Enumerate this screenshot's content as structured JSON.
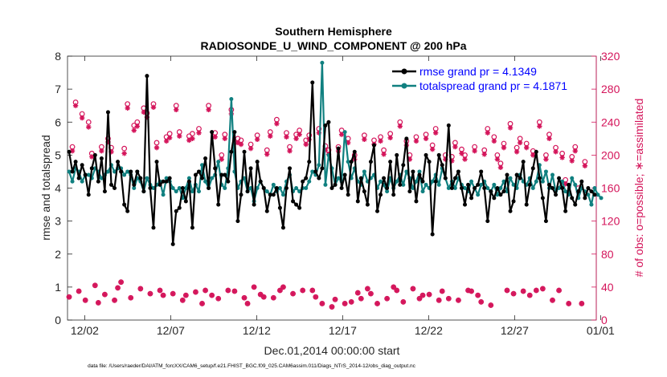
{
  "chart_data": {
    "type": "line",
    "title": "Southern Hemisphere",
    "subtitle": "RADIOSONDE_U_WIND_COMPONENT @ 200 hPa",
    "xlabel": "Dec.01,2014 00:00:00 start",
    "ylabel": "rmse and totalspread",
    "ylabel_right": "# of obs: o=possible; ∗=assimilated",
    "xlim": [
      0,
      30.75
    ],
    "ylim": [
      0,
      8
    ],
    "ylim_right": [
      0,
      320
    ],
    "x_ticks": [
      1,
      6,
      11,
      16,
      21,
      26,
      31
    ],
    "x_tick_labels": [
      "12/02",
      "12/07",
      "12/12",
      "12/17",
      "12/22",
      "12/27",
      "01/01"
    ],
    "y_ticks": [
      "0",
      "1",
      "2",
      "3",
      "4",
      "5",
      "6",
      "7",
      "8"
    ],
    "y_ticks_right": [
      "0",
      "40",
      "80",
      "120",
      "160",
      "200",
      "240",
      "280",
      "320"
    ],
    "legend": [
      {
        "label": "rmse grand pr = 4.1349",
        "color": "#000000"
      },
      {
        "label": "totalspread grand pr = 4.1871",
        "color": "#108080"
      }
    ],
    "series": [
      {
        "name": "rmse",
        "axis": "left",
        "color": "#000000",
        "marker": "dot",
        "values": [
          5.1,
          4.5,
          4.8,
          4.3,
          4.7,
          4.4,
          3.8,
          4.6,
          5.0,
          4.2,
          4.9,
          3.9,
          6.3,
          4.1,
          4.0,
          4.8,
          4.5,
          3.5,
          3.3,
          4.5,
          4.1,
          4.5,
          4.3,
          3.9,
          7.4,
          4.0,
          2.8,
          4.8,
          4.1,
          4.2,
          4.2,
          4.3,
          2.3,
          3.3,
          3.4,
          4.0,
          3.6,
          4.2,
          2.8,
          4.4,
          4.5,
          4.3,
          4.9,
          4.0,
          5.7,
          4.6,
          3.5,
          4.4,
          4.4,
          4.2,
          5.1,
          5.7,
          3.0,
          3.8,
          5.1,
          3.9,
          4.6,
          3.5,
          4.8,
          4.2,
          4.0,
          3.3,
          3.8,
          3.8,
          4.0,
          3.4,
          2.8,
          4.0,
          4.6,
          3.6,
          3.5,
          3.4,
          4.2,
          4.3,
          4.8,
          7.2,
          4.5,
          4.3,
          4.6,
          5.9,
          6.0,
          4.0,
          4.1,
          5.2,
          4.0,
          4.4,
          3.8,
          4.8,
          5.1,
          3.6,
          4.3,
          3.9,
          3.5,
          4.8,
          5.3,
          3.3,
          3.8,
          4.3,
          4.0,
          4.8,
          3.8,
          5.0,
          4.1,
          4.7,
          5.5,
          3.9,
          4.5,
          3.6,
          4.4,
          4.2,
          5.0,
          4.8,
          2.6,
          4.2,
          5.0,
          4.7,
          4.3,
          5.9,
          4.0,
          4.3,
          4.5,
          4.0,
          3.5,
          4.1,
          3.7,
          4.0,
          4.1,
          4.5,
          4.0,
          3.0,
          3.9,
          3.7,
          4.0,
          3.8,
          3.9,
          4.4,
          3.3,
          3.6,
          4.4,
          4.3,
          4.8,
          3.5,
          4.1,
          4.6,
          5.1,
          4.3,
          3.7,
          3.0,
          4.1,
          4.0,
          3.8,
          4.3,
          4.0,
          3.3,
          4.1,
          3.7,
          3.5,
          3.9,
          4.2,
          3.7,
          4.0,
          3.9,
          3.8
        ]
      },
      {
        "name": "totalspread",
        "axis": "left",
        "color": "#108080",
        "marker": "dot",
        "values": [
          4.5,
          4.2,
          4.6,
          4.5,
          4.2,
          4.4,
          4.4,
          4.3,
          4.6,
          4.5,
          4.3,
          4.4,
          4.5,
          4.7,
          4.5,
          4.6,
          4.6,
          4.4,
          4.5,
          4.4,
          4.0,
          4.3,
          4.2,
          3.9,
          4.3,
          4.1,
          4.0,
          4.1,
          4.2,
          3.8,
          4.3,
          4.2,
          4.0,
          3.9,
          4.0,
          3.7,
          4.0,
          4.3,
          3.9,
          4.1,
          3.9,
          4.7,
          4.2,
          4.0,
          4.3,
          4.4,
          4.8,
          4.1,
          4.0,
          4.6,
          6.7,
          4.5,
          4.0,
          4.2,
          4.3,
          3.9,
          4.0,
          3.6,
          4.0,
          4.2,
          4.0,
          3.9,
          3.8,
          4.1,
          3.9,
          4.0,
          3.8,
          4.2,
          4.4,
          3.9,
          4.0,
          3.9,
          4.0,
          4.0,
          4.2,
          4.5,
          4.4,
          4.7,
          7.8,
          4.1,
          5.0,
          4.6,
          4.1,
          4.3,
          4.2,
          5.7,
          4.8,
          4.3,
          4.6,
          4.2,
          4.1,
          4.5,
          4.2,
          4.3,
          4.4,
          4.0,
          4.2,
          4.1,
          3.9,
          4.3,
          4.0,
          4.2,
          4.4,
          4.1,
          4.5,
          4.3,
          4.0,
          4.2,
          4.5,
          3.9,
          4.1,
          4.0,
          4.2,
          4.4,
          4.1,
          4.6,
          4.3,
          4.0,
          4.2,
          4.0,
          4.3,
          4.1,
          4.0,
          3.9,
          4.2,
          4.0,
          3.8,
          4.1,
          4.2,
          4.0,
          3.9,
          4.1,
          3.8,
          4.0,
          4.2,
          3.9,
          4.3,
          4.1,
          4.0,
          4.4,
          4.2,
          4.1,
          4.3,
          4.0,
          4.2,
          4.7,
          4.2,
          4.5,
          4.0,
          4.4,
          3.9,
          4.0,
          4.2,
          3.9,
          3.8,
          4.3,
          4.1,
          3.7,
          4.0,
          3.9,
          3.8,
          3.5,
          4.0,
          3.8,
          3.7
        ]
      },
      {
        "name": "obs possible (o)",
        "axis": "right",
        "color": "#d4145a",
        "marker": "circle",
        "values": [
          28,
          210,
          264,
          35,
          250,
          24,
          240,
          202,
          42,
          21,
          210,
          31,
          220,
          209,
          24,
          39,
          46,
          208,
          262,
          27,
          236,
          240,
          38,
          257,
          251,
          32,
          262,
          215,
          36,
          30,
          222,
          226,
          32,
          260,
          228,
          24,
          30,
          223,
          226,
          34,
          232,
          20,
          36,
          260,
          30,
          227,
          26,
          200,
          225,
          36,
          255,
          35,
          220,
          218,
          27,
          20,
          213,
          40,
          224,
          31,
          28,
          206,
          228,
          27,
          243,
          36,
          40,
          227,
          210,
          32,
          225,
          230,
          36,
          218,
          224,
          36,
          28,
          232,
          20,
          211,
          206,
          16,
          25,
          210,
          230,
          20,
          220,
          22,
          200,
          33,
          26,
          224,
          38,
          32,
          218,
          20,
          222,
          206,
          26,
          226,
          40,
          36,
          240,
          22,
          217,
          200,
          38,
          222,
          26,
          30,
          225,
          31,
          212,
          232,
          24,
          35,
          200,
          26,
          198,
          215,
          24,
          207,
          200,
          36,
          35,
          210,
          30,
          22,
          206,
          232,
          18,
          222,
          200,
          190,
          214,
          36,
          238,
          32,
          209,
          220,
          35,
          214,
          30,
          205,
          36,
          240,
          38,
          200,
          225,
          24,
          209,
          36,
          202,
          170,
          20,
          198,
          210,
          160,
          20,
          192
        ]
      },
      {
        "name": "obs assimilated (*)",
        "axis": "right",
        "color": "#d4145a",
        "marker": "asterisk",
        "values": [
          28,
          205,
          260,
          35,
          245,
          24,
          234,
          198,
          42,
          21,
          205,
          31,
          216,
          204,
          24,
          39,
          46,
          202,
          257,
          27,
          230,
          235,
          38,
          252,
          246,
          32,
          258,
          209,
          36,
          30,
          217,
          221,
          32,
          255,
          223,
          24,
          30,
          218,
          220,
          34,
          227,
          20,
          36,
          255,
          30,
          222,
          26,
          195,
          220,
          36,
          250,
          35,
          215,
          213,
          27,
          20,
          208,
          40,
          219,
          31,
          28,
          201,
          223,
          27,
          238,
          36,
          40,
          222,
          205,
          32,
          220,
          225,
          36,
          213,
          219,
          36,
          28,
          227,
          20,
          206,
          201,
          16,
          25,
          205,
          225,
          20,
          215,
          22,
          195,
          33,
          26,
          219,
          38,
          32,
          213,
          20,
          217,
          201,
          26,
          221,
          40,
          36,
          235,
          22,
          212,
          195,
          38,
          217,
          26,
          30,
          220,
          31,
          207,
          227,
          24,
          35,
          195,
          26,
          193,
          210,
          24,
          202,
          195,
          36,
          35,
          205,
          30,
          22,
          201,
          227,
          18,
          217,
          195,
          185,
          209,
          36,
          233,
          32,
          204,
          215,
          35,
          209,
          30,
          200,
          36,
          235,
          38,
          195,
          220,
          24,
          204,
          36,
          197,
          165,
          20,
          193,
          205,
          155,
          20,
          187
        ]
      }
    ]
  },
  "footer": {
    "data_file": "data file: /Users/raeder/DAI/ATM_forcXX/CAM6_setup/f.e21.FHIST_BGC.f09_025.CAM6assim.011/Diags_NTrS_2014-12/obs_diag_output.nc"
  }
}
